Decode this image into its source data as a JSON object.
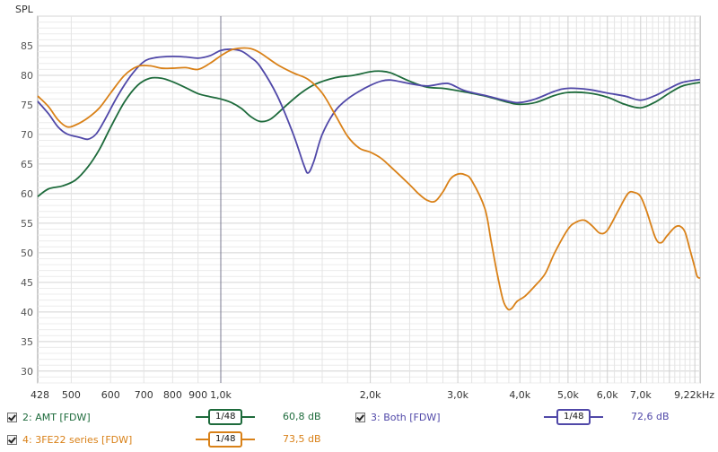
{
  "chart_data": {
    "type": "line",
    "ylabel": "SPL",
    "xunit": "Hz",
    "xscale": "log",
    "xlim": [
      428,
      9220
    ],
    "ylim": [
      28,
      90
    ],
    "grid": true,
    "yticks": [
      30,
      35,
      40,
      45,
      50,
      55,
      60,
      65,
      70,
      75,
      80,
      85
    ],
    "xticks": [
      {
        "v": 428,
        "label": "428"
      },
      {
        "v": 500,
        "label": "500"
      },
      {
        "v": 600,
        "label": "600"
      },
      {
        "v": 700,
        "label": "700"
      },
      {
        "v": 800,
        "label": "800"
      },
      {
        "v": 900,
        "label": "900"
      },
      {
        "v": 1000,
        "label": "1,0k"
      },
      {
        "v": 2000,
        "label": "2,0k"
      },
      {
        "v": 3000,
        "label": "3,0k"
      },
      {
        "v": 4000,
        "label": "4,0k"
      },
      {
        "v": 5000,
        "label": "5,0k"
      },
      {
        "v": 6000,
        "label": "6,0k"
      },
      {
        "v": 7000,
        "label": "7,0k"
      },
      {
        "v": 9220,
        "label": "9,22kHz"
      }
    ],
    "cursor_x": 1000,
    "series": [
      {
        "name": "2: AMT [FDW]",
        "color": "#1e6b3c",
        "points": [
          [
            428,
            59.5
          ],
          [
            450,
            60.8
          ],
          [
            480,
            61.3
          ],
          [
            510,
            62.3
          ],
          [
            540,
            64.5
          ],
          [
            570,
            67.5
          ],
          [
            600,
            71.2
          ],
          [
            640,
            75.5
          ],
          [
            680,
            78.3
          ],
          [
            720,
            79.5
          ],
          [
            760,
            79.5
          ],
          [
            800,
            78.9
          ],
          [
            850,
            77.9
          ],
          [
            900,
            76.9
          ],
          [
            950,
            76.4
          ],
          [
            1000,
            76.0
          ],
          [
            1050,
            75.4
          ],
          [
            1100,
            74.4
          ],
          [
            1150,
            73.0
          ],
          [
            1200,
            72.2
          ],
          [
            1260,
            72.6
          ],
          [
            1350,
            74.8
          ],
          [
            1450,
            77.0
          ],
          [
            1550,
            78.5
          ],
          [
            1700,
            79.6
          ],
          [
            1850,
            80.0
          ],
          [
            2000,
            80.6
          ],
          [
            2100,
            80.7
          ],
          [
            2200,
            80.4
          ],
          [
            2400,
            79.0
          ],
          [
            2600,
            78.0
          ],
          [
            2800,
            77.8
          ],
          [
            3000,
            77.4
          ],
          [
            3400,
            76.5
          ],
          [
            3800,
            75.4
          ],
          [
            4000,
            75.1
          ],
          [
            4300,
            75.4
          ],
          [
            4700,
            76.6
          ],
          [
            5000,
            77.1
          ],
          [
            5500,
            77.0
          ],
          [
            6000,
            76.3
          ],
          [
            6500,
            75.1
          ],
          [
            7000,
            74.5
          ],
          [
            7500,
            75.5
          ],
          [
            8000,
            77.0
          ],
          [
            8500,
            78.2
          ],
          [
            9220,
            78.8
          ]
        ]
      },
      {
        "name": "3: Both [FDW]",
        "color": "#5048a8",
        "points": [
          [
            428,
            75.6
          ],
          [
            450,
            73.5
          ],
          [
            470,
            71.3
          ],
          [
            490,
            70.1
          ],
          [
            520,
            69.5
          ],
          [
            540,
            69.2
          ],
          [
            560,
            70.0
          ],
          [
            580,
            72.0
          ],
          [
            620,
            76.5
          ],
          [
            660,
            80.0
          ],
          [
            700,
            82.3
          ],
          [
            740,
            83.0
          ],
          [
            800,
            83.2
          ],
          [
            850,
            83.1
          ],
          [
            900,
            82.9
          ],
          [
            950,
            83.3
          ],
          [
            1000,
            84.2
          ],
          [
            1050,
            84.4
          ],
          [
            1100,
            84.1
          ],
          [
            1150,
            83.0
          ],
          [
            1200,
            81.5
          ],
          [
            1300,
            76.5
          ],
          [
            1400,
            70.0
          ],
          [
            1470,
            64.8
          ],
          [
            1500,
            63.5
          ],
          [
            1540,
            65.5
          ],
          [
            1600,
            70.0
          ],
          [
            1700,
            74.0
          ],
          [
            1800,
            76.0
          ],
          [
            1900,
            77.3
          ],
          [
            2000,
            78.3
          ],
          [
            2100,
            79.0
          ],
          [
            2200,
            79.2
          ],
          [
            2400,
            78.6
          ],
          [
            2600,
            78.2
          ],
          [
            2800,
            78.6
          ],
          [
            2900,
            78.5
          ],
          [
            3100,
            77.4
          ],
          [
            3400,
            76.6
          ],
          [
            3800,
            75.6
          ],
          [
            4000,
            75.4
          ],
          [
            4300,
            76.0
          ],
          [
            4700,
            77.3
          ],
          [
            5000,
            77.8
          ],
          [
            5500,
            77.6
          ],
          [
            6000,
            77.0
          ],
          [
            6500,
            76.5
          ],
          [
            7000,
            75.8
          ],
          [
            7500,
            76.6
          ],
          [
            8000,
            77.8
          ],
          [
            8500,
            78.8
          ],
          [
            9220,
            79.3
          ]
        ]
      },
      {
        "name": "4: 3FE22 series [FDW]",
        "color": "#d98118",
        "points": [
          [
            428,
            76.5
          ],
          [
            450,
            74.7
          ],
          [
            470,
            72.5
          ],
          [
            490,
            71.3
          ],
          [
            510,
            71.6
          ],
          [
            540,
            72.8
          ],
          [
            570,
            74.5
          ],
          [
            600,
            77.0
          ],
          [
            640,
            80.0
          ],
          [
            680,
            81.5
          ],
          [
            720,
            81.6
          ],
          [
            760,
            81.2
          ],
          [
            800,
            81.2
          ],
          [
            850,
            81.3
          ],
          [
            900,
            81.0
          ],
          [
            950,
            82.0
          ],
          [
            1000,
            83.3
          ],
          [
            1050,
            84.3
          ],
          [
            1100,
            84.6
          ],
          [
            1150,
            84.5
          ],
          [
            1200,
            83.8
          ],
          [
            1300,
            81.8
          ],
          [
            1400,
            80.4
          ],
          [
            1500,
            79.3
          ],
          [
            1600,
            77.0
          ],
          [
            1700,
            73.3
          ],
          [
            1800,
            69.7
          ],
          [
            1900,
            67.7
          ],
          [
            2000,
            67.0
          ],
          [
            2100,
            66.0
          ],
          [
            2200,
            64.5
          ],
          [
            2400,
            61.5
          ],
          [
            2500,
            60.0
          ],
          [
            2600,
            58.9
          ],
          [
            2700,
            58.7
          ],
          [
            2800,
            60.3
          ],
          [
            2900,
            62.5
          ],
          [
            3000,
            63.3
          ],
          [
            3100,
            63.2
          ],
          [
            3200,
            62.2
          ],
          [
            3400,
            57.5
          ],
          [
            3500,
            52.0
          ],
          [
            3600,
            46.5
          ],
          [
            3700,
            42.0
          ],
          [
            3780,
            40.5
          ],
          [
            3850,
            40.6
          ],
          [
            3950,
            41.8
          ],
          [
            4100,
            42.7
          ],
          [
            4300,
            44.5
          ],
          [
            4500,
            46.5
          ],
          [
            4700,
            50.0
          ],
          [
            5000,
            54.0
          ],
          [
            5200,
            55.2
          ],
          [
            5400,
            55.5
          ],
          [
            5600,
            54.5
          ],
          [
            5800,
            53.3
          ],
          [
            6000,
            53.8
          ],
          [
            6300,
            57.0
          ],
          [
            6600,
            60.0
          ],
          [
            6800,
            60.2
          ],
          [
            7000,
            59.5
          ],
          [
            7200,
            57.0
          ],
          [
            7500,
            52.5
          ],
          [
            7700,
            51.7
          ],
          [
            7900,
            52.8
          ],
          [
            8200,
            54.3
          ],
          [
            8400,
            54.5
          ],
          [
            8600,
            53.5
          ],
          [
            8800,
            50.5
          ],
          [
            9000,
            47.5
          ],
          [
            9100,
            46.0
          ],
          [
            9220,
            45.7
          ]
        ]
      }
    ]
  },
  "legend": [
    {
      "label": "2: AMT [FDW]",
      "smoothing": "1/48",
      "level": "60,8 dB",
      "color": "#1e6b3c",
      "text_color": "#1e6b3c"
    },
    {
      "label": "3: Both [FDW]",
      "smoothing": "1/48",
      "level": "72,6 dB",
      "color": "#5048a8",
      "text_color": "#5048a8"
    },
    {
      "label": "4: 3FE22 series [FDW]",
      "smoothing": "1/48",
      "level": "73,5 dB",
      "color": "#d98118",
      "text_color": "#d98118"
    }
  ]
}
